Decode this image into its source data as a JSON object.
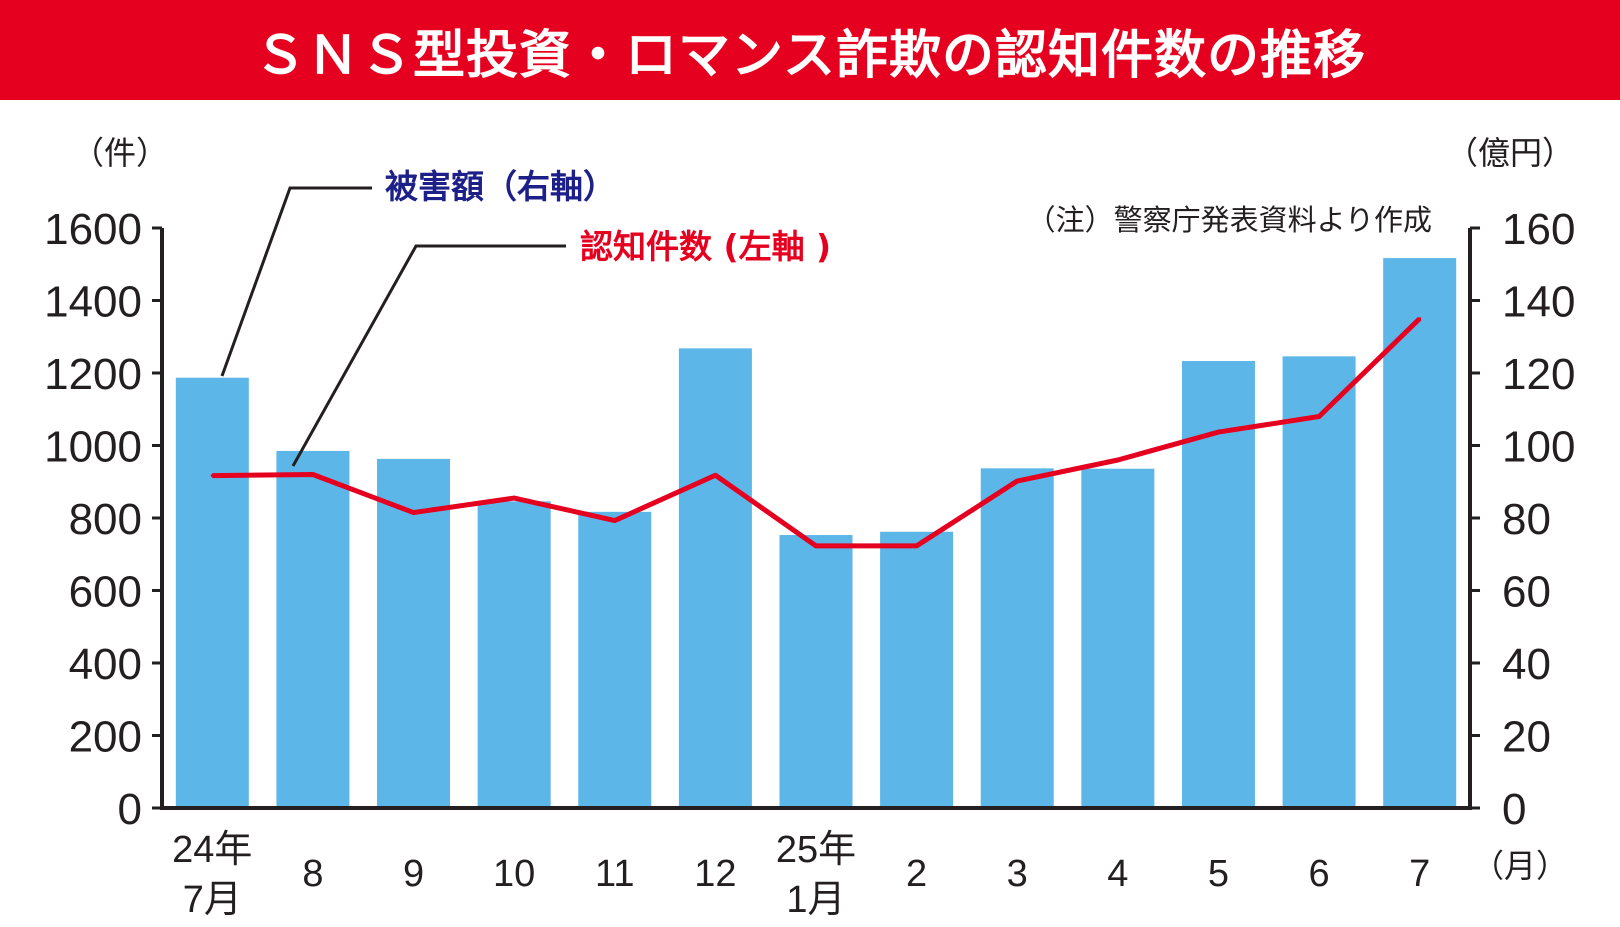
{
  "title": "ＳＮＳ型投資・ロマンス詐欺の認知件数の推移",
  "colors": {
    "title_bg": "#e60020",
    "bar": "#5db6e8",
    "line": "#e60020",
    "legend_amount": "#1d2088",
    "legend_count": "#e60020",
    "axis": "#231f20"
  },
  "left_unit": "（件）",
  "right_unit": "（億円）",
  "x_unit": "（月）",
  "note": "（注）警察庁発表資料より作成",
  "legend": {
    "amount": "被害額（右軸）",
    "count": "認知件数 (左軸 )"
  },
  "chart_data": {
    "type": "bar",
    "categories": [
      "24年 7月",
      "8",
      "9",
      "10",
      "11",
      "12",
      "25年 1月",
      "2",
      "3",
      "4",
      "5",
      "6",
      "7"
    ],
    "x_labels": [
      [
        "24年",
        "7月"
      ],
      [
        "8"
      ],
      [
        "9"
      ],
      [
        "10"
      ],
      [
        "11"
      ],
      [
        "12"
      ],
      [
        "25年",
        "1月"
      ],
      [
        "2"
      ],
      [
        "3"
      ],
      [
        "4"
      ],
      [
        "5"
      ],
      [
        "6"
      ],
      [
        "7"
      ]
    ],
    "left_axis": {
      "ylim": [
        0,
        1600
      ],
      "ticks": [
        0,
        200,
        400,
        600,
        800,
        1000,
        1200,
        1400,
        1600
      ]
    },
    "right_axis": {
      "ylim": [
        0,
        160
      ],
      "ticks": [
        0,
        20,
        40,
        60,
        80,
        100,
        120,
        140,
        160
      ]
    },
    "series": [
      {
        "name": "被害額",
        "type": "bar",
        "axis": "right",
        "values": [
          118.7,
          98.5,
          96.3,
          84.6,
          81.7,
          126.8,
          75.3,
          76.2,
          93.7,
          93.6,
          123.3,
          124.6,
          151.7
        ]
      },
      {
        "name": "認知件数",
        "type": "line",
        "axis": "left",
        "values": [
          917,
          920,
          815,
          855,
          793,
          918,
          723,
          723,
          902,
          960,
          1037,
          1080,
          1350
        ]
      }
    ]
  }
}
